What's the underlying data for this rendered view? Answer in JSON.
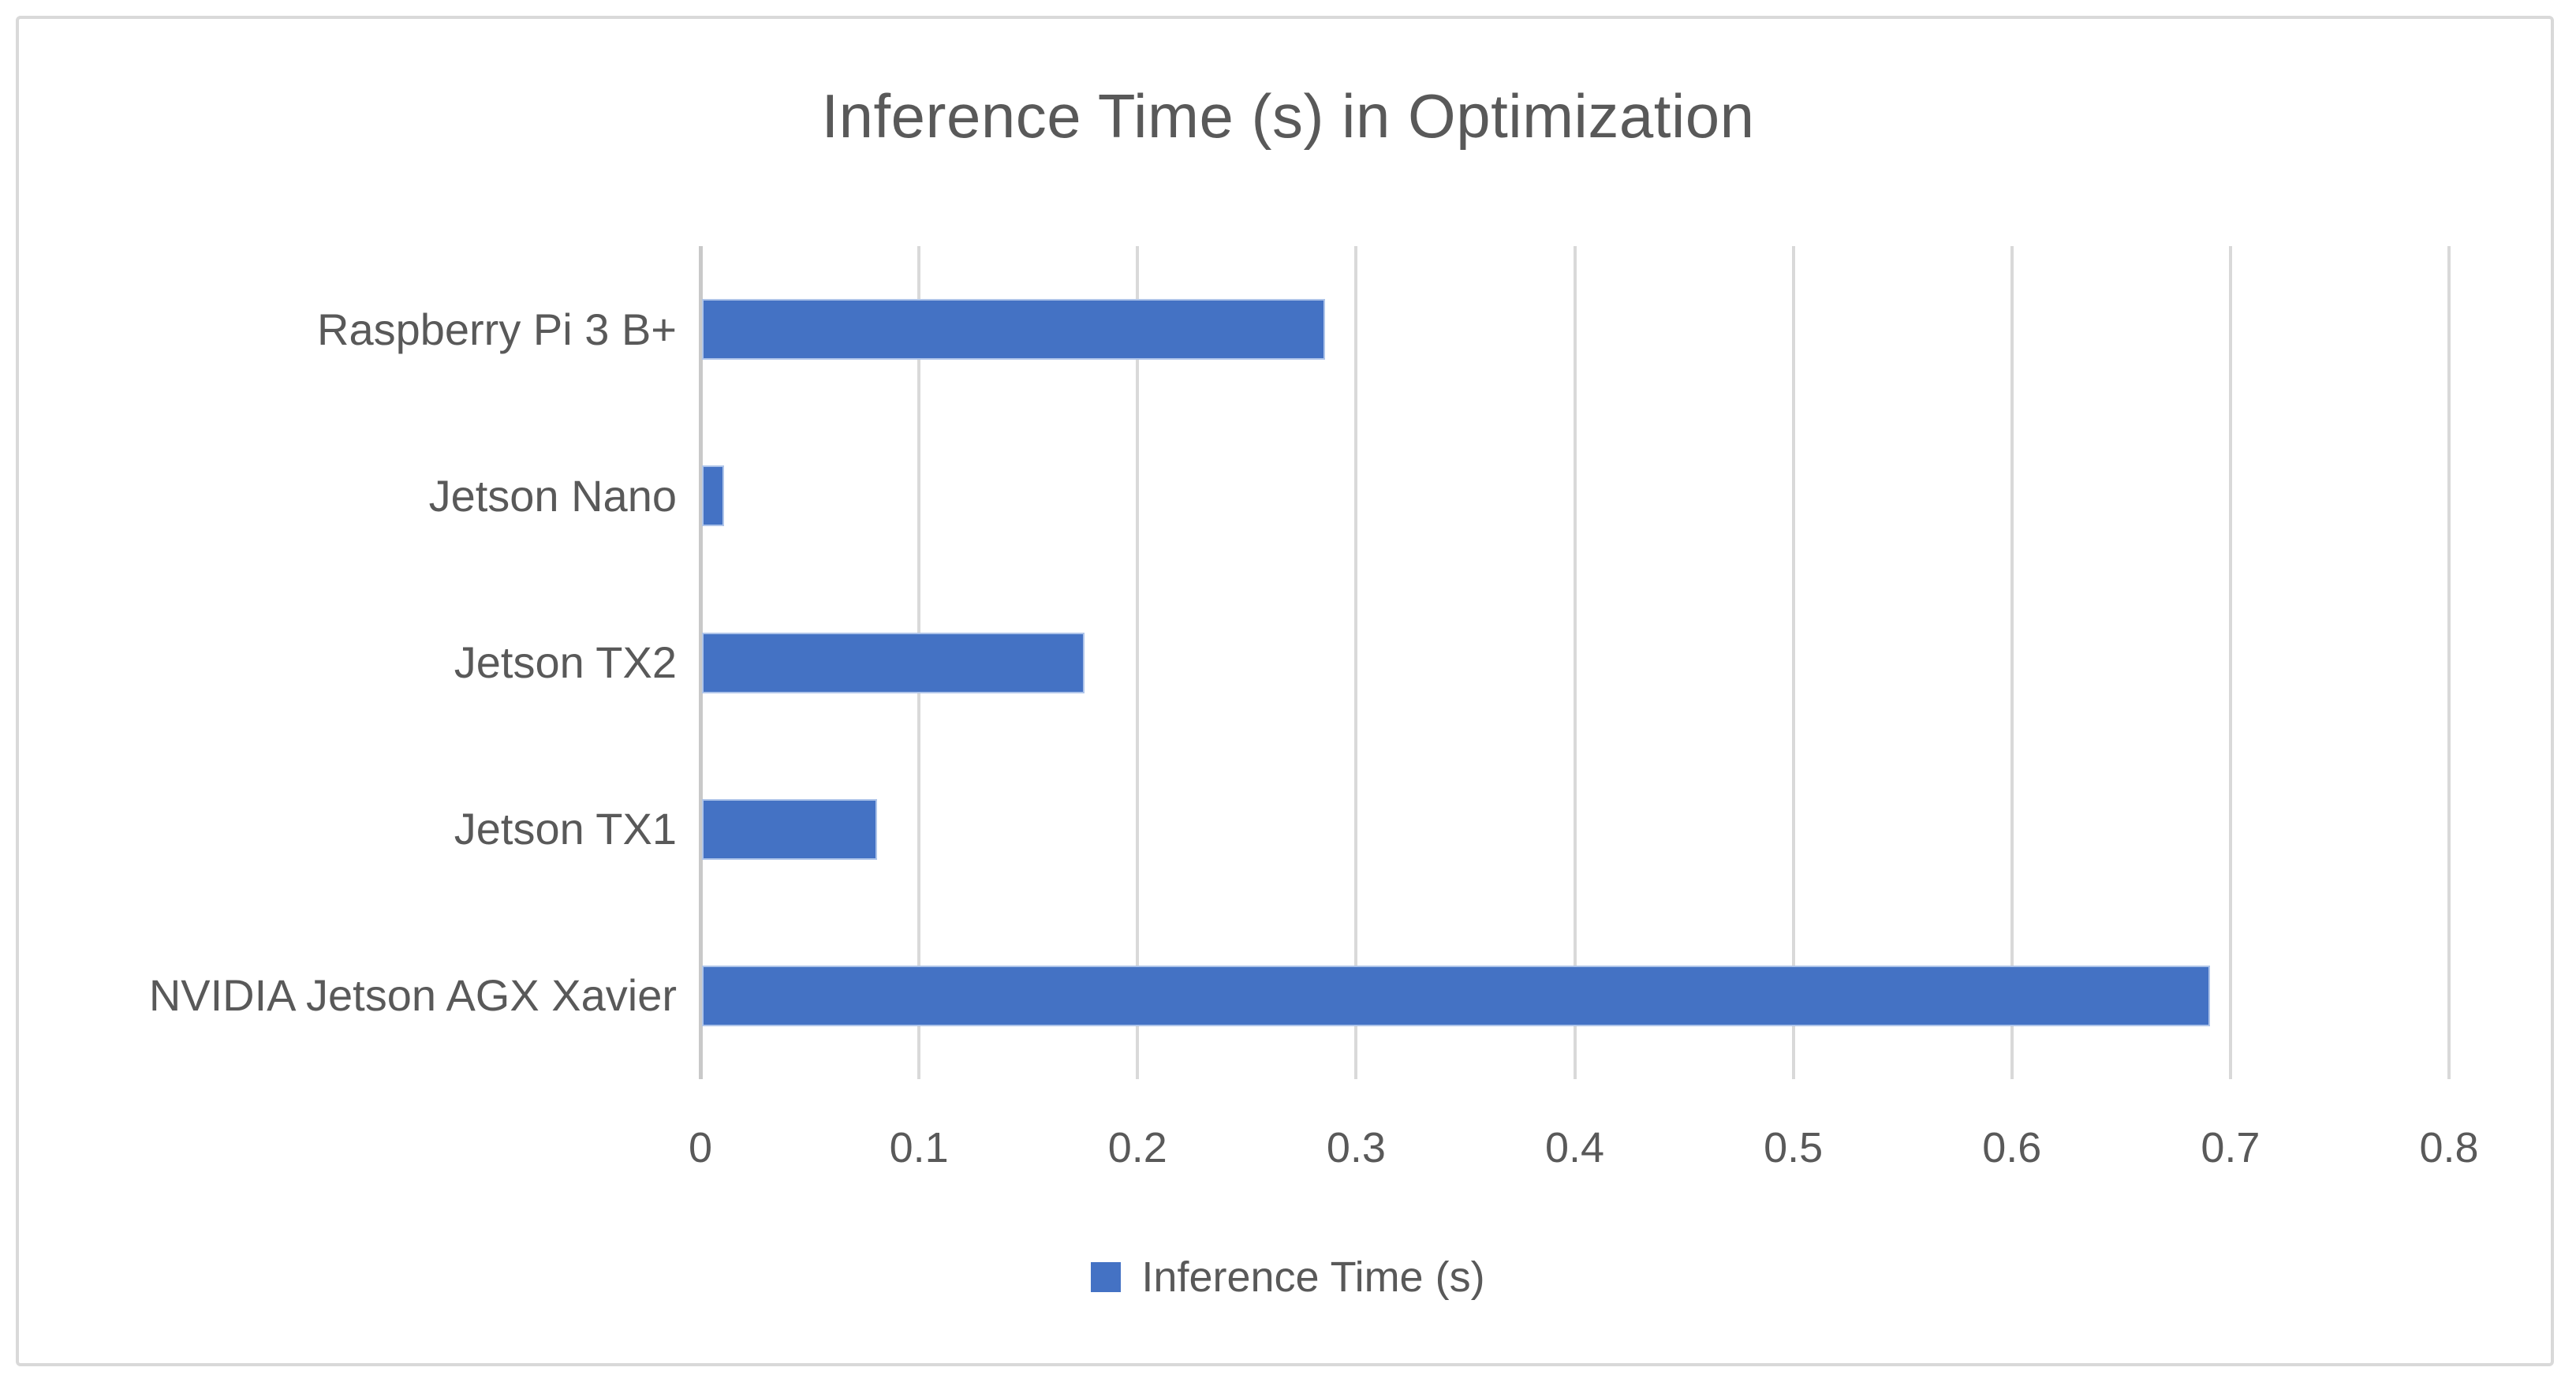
{
  "chart_data": {
    "type": "bar",
    "orientation": "horizontal",
    "title": "Inference Time (s) in Optimization",
    "series_name": "Inference Time (s)",
    "categories": [
      "Raspberry Pi 3 B+",
      "Jetson Nano",
      "Jetson TX2",
      "Jetson TX1",
      "NVIDIA Jetson AGX Xavier"
    ],
    "values": [
      0.285,
      0.01,
      0.175,
      0.08,
      0.69
    ],
    "xlim": [
      0,
      0.8
    ],
    "x_ticks": [
      0,
      0.1,
      0.2,
      0.3,
      0.4,
      0.5,
      0.6,
      0.7,
      0.8
    ],
    "x_tick_labels": [
      "0",
      "0.1",
      "0.2",
      "0.3",
      "0.4",
      "0.5",
      "0.6",
      "0.7",
      "0.8"
    ],
    "grid": true,
    "legend_position": "bottom",
    "colors": {
      "bar": "#4472C4",
      "bar_edge": "#AEC4E9",
      "grid": "#D9D9D9",
      "axis": "#C9C9C9",
      "text": "#595959",
      "frame_border": "#D9D9D9",
      "background": "#FFFFFF"
    }
  }
}
